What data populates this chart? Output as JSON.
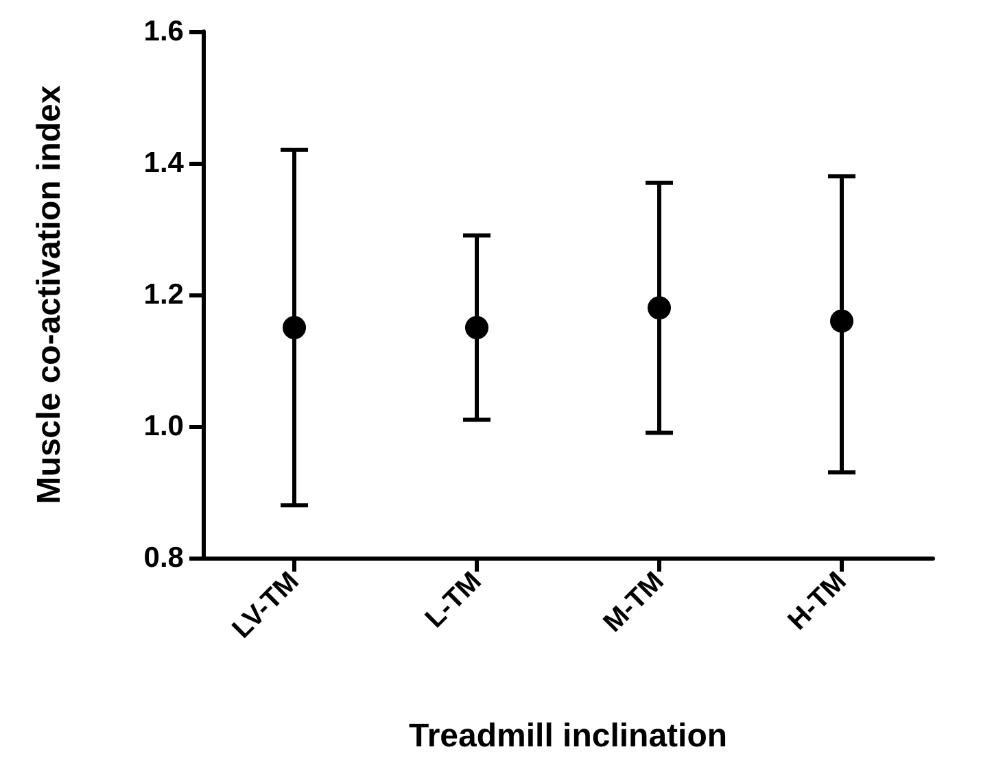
{
  "chart_data": {
    "type": "scatter",
    "xlabel": "Treadmill inclination",
    "ylabel": "Muscle co-activation index",
    "categories": [
      "LV-TM",
      "L-TM",
      "M-TM",
      "H-TM"
    ],
    "values": [
      1.15,
      1.15,
      1.18,
      1.16
    ],
    "errors": [
      [
        0.88,
        1.42
      ],
      [
        1.01,
        1.29
      ],
      [
        0.99,
        1.37
      ],
      [
        0.93,
        1.38
      ]
    ],
    "color": "#000000",
    "marker": "circle",
    "ylim": [
      0.8,
      1.6
    ],
    "yticks": [
      {
        "value": 0.8,
        "label": "0.8"
      },
      {
        "value": 1,
        "label": "1.0"
      },
      {
        "value": 1.2,
        "label": "1.2"
      },
      {
        "value": 1.4,
        "label": "1.4"
      },
      {
        "value": 1.6,
        "label": "1.6"
      }
    ],
    "grid": false
  }
}
